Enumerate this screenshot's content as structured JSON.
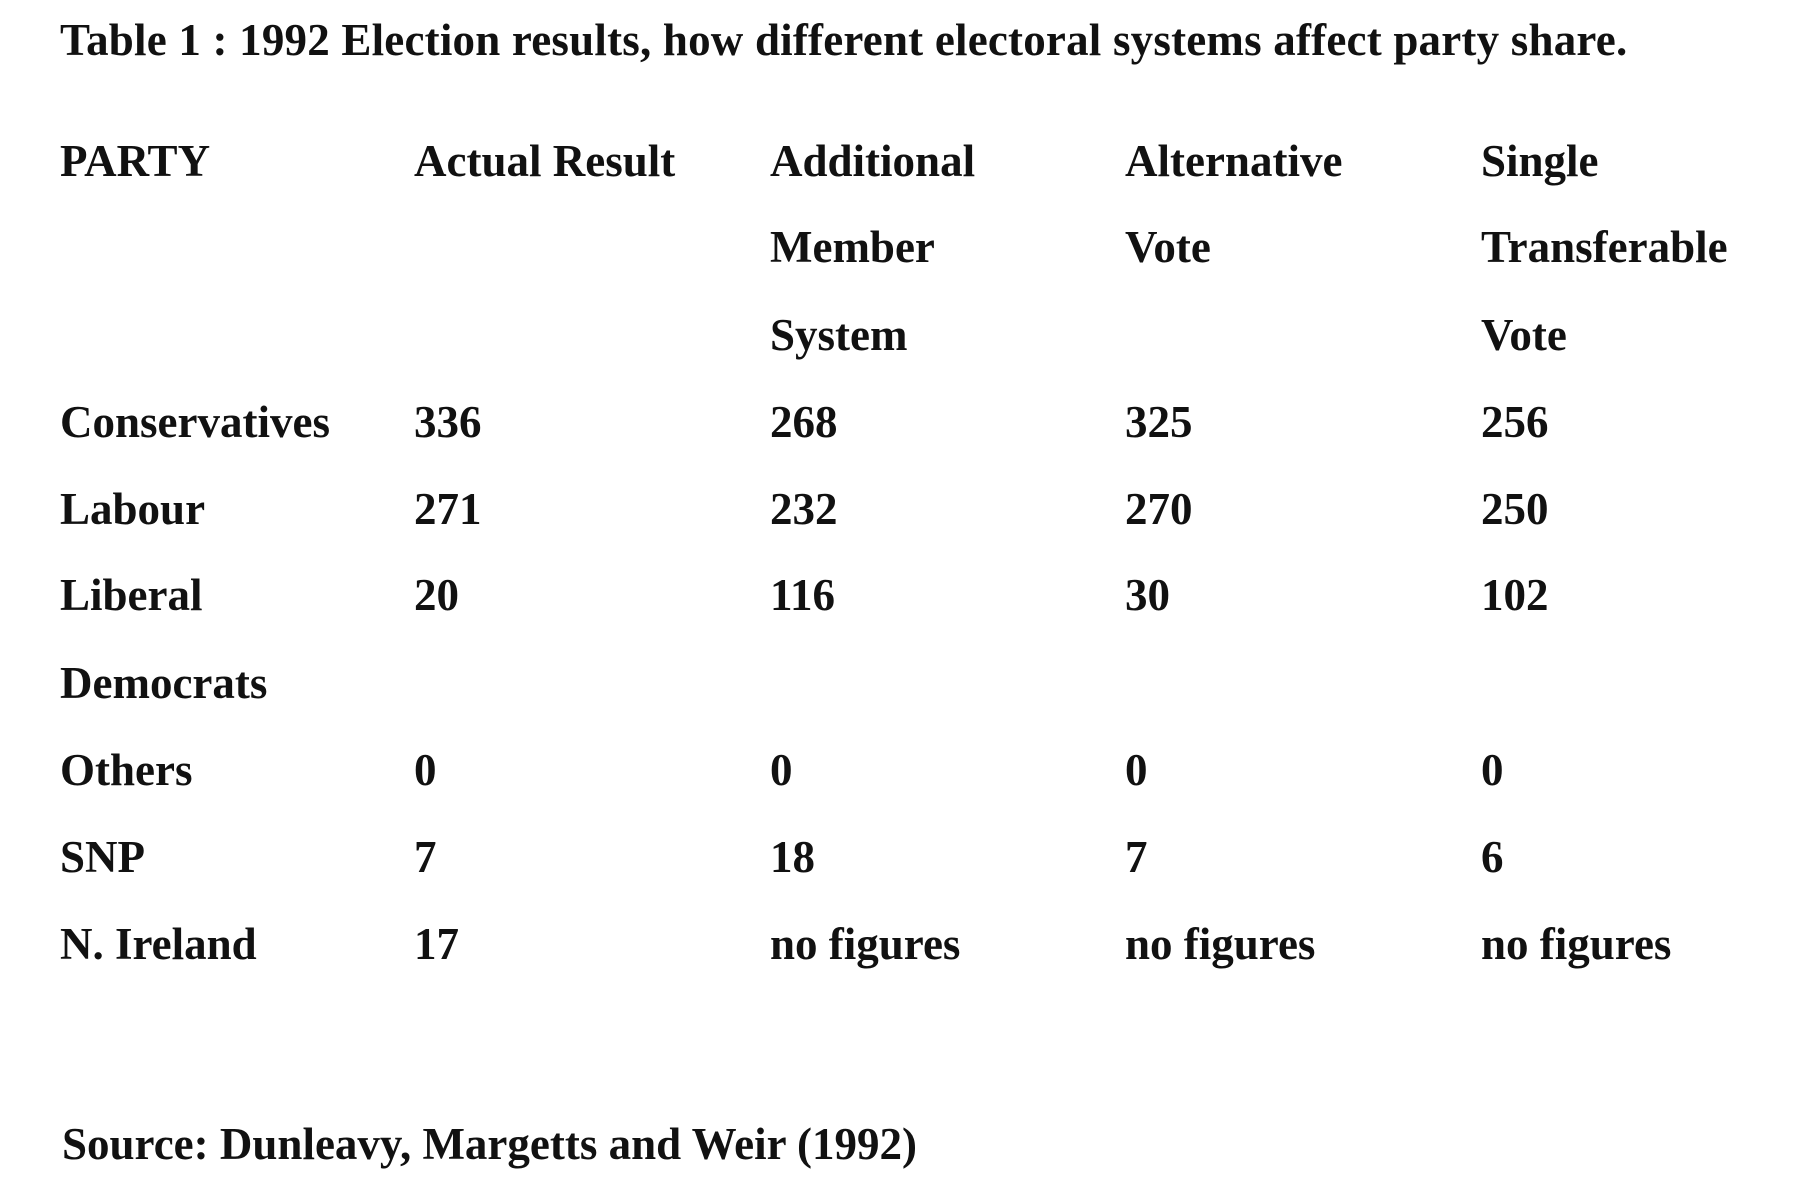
{
  "title": "Table 1 : 1992 Election results, how different electoral systems affect party share.",
  "headers": {
    "party": "PARTY",
    "actual": "Actual Result",
    "ams": [
      "Additional",
      "Member",
      "System"
    ],
    "av": [
      "Alternative",
      "Vote"
    ],
    "stv": [
      "Single",
      "Transferable",
      "Vote"
    ]
  },
  "rows": [
    {
      "party": [
        "Conservatives"
      ],
      "actual": "336",
      "ams": "268",
      "av": "325",
      "stv": "256"
    },
    {
      "party": [
        "Labour"
      ],
      "actual": "271",
      "ams": "232",
      "av": "270",
      "stv": "250"
    },
    {
      "party": [
        "Liberal",
        "Democrats"
      ],
      "actual": "20",
      "ams": "116",
      "av": "30",
      "stv": "102"
    },
    {
      "party": [
        "Others"
      ],
      "actual": "0",
      "ams": "0",
      "av": "0",
      "stv": "0"
    },
    {
      "party": [
        "SNP"
      ],
      "actual": "7",
      "ams": "18",
      "av": "7",
      "stv": "6"
    },
    {
      "party": [
        "N. Ireland"
      ],
      "actual": "17",
      "ams": "no figures",
      "av": "no figures",
      "stv": "no figures"
    }
  ],
  "source": "Source: Dunleavy, Margetts and Weir (1992)"
}
